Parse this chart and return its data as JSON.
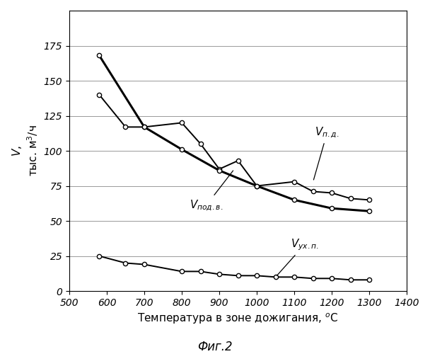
{
  "xlim": [
    500,
    1400
  ],
  "ylim": [
    0,
    200
  ],
  "xticks": [
    500,
    600,
    700,
    800,
    900,
    1000,
    1100,
    1200,
    1300,
    1400
  ],
  "yticks": [
    0,
    25,
    50,
    75,
    100,
    125,
    150,
    175
  ],
  "curve_vpd": {
    "x": [
      580,
      700,
      800,
      900,
      1000,
      1100,
      1200,
      1300
    ],
    "y": [
      168,
      117,
      101,
      86,
      75,
      65,
      59,
      57
    ],
    "linewidth": 2.2,
    "marker": "o",
    "markersize": 4.5
  },
  "curve_vpodv": {
    "x": [
      580,
      650,
      700,
      800,
      850,
      900,
      950,
      1000,
      1100,
      1150,
      1200,
      1250,
      1300
    ],
    "y": [
      140,
      117,
      117,
      120,
      105,
      87,
      93,
      75,
      78,
      71,
      70,
      66,
      65
    ],
    "linewidth": 1.4,
    "marker": "o",
    "markersize": 4.5
  },
  "curve_vukhp": {
    "x": [
      580,
      650,
      700,
      800,
      850,
      900,
      950,
      1000,
      1050,
      1100,
      1150,
      1200,
      1250,
      1300
    ],
    "y": [
      25,
      20,
      19,
      14,
      14,
      12,
      11,
      11,
      10,
      10,
      9,
      9,
      8,
      8
    ],
    "linewidth": 1.4,
    "marker": "o",
    "markersize": 4.5
  },
  "background_color": "#ffffff",
  "grid_color": "#999999"
}
